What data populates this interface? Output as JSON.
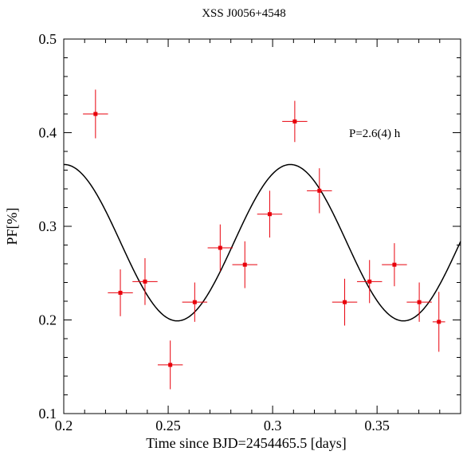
{
  "chart_data": {
    "type": "scatter",
    "title": "XSS J0056+4548",
    "xlabel": "Time since BJD=2454465.5 [days]",
    "ylabel": "PF[%]",
    "xlim": [
      0.2,
      0.39
    ],
    "ylim": [
      0.1,
      0.5
    ],
    "x_ticks": [
      0.2,
      0.25,
      0.3,
      0.35
    ],
    "x_tick_labels": [
      "0.2",
      "0.25",
      "0.3",
      "0.35"
    ],
    "y_ticks": [
      0.1,
      0.2,
      0.3,
      0.4,
      0.5
    ],
    "y_tick_labels": [
      "0.1",
      "0.2",
      "0.3",
      "0.4",
      "0.5"
    ],
    "annotation": "P=2.6(4) h",
    "grid": false,
    "colors": {
      "points": "#e8000b",
      "model": "#000000"
    },
    "series": [
      {
        "kind": "points_with_errorbars",
        "points": [
          {
            "x": 0.2152,
            "y": 0.42,
            "xerr": 0.006,
            "yerr": 0.026
          },
          {
            "x": 0.2271,
            "y": 0.229,
            "xerr": 0.006,
            "yerr": 0.025
          },
          {
            "x": 0.2389,
            "y": 0.241,
            "xerr": 0.006,
            "yerr": 0.025
          },
          {
            "x": 0.251,
            "y": 0.152,
            "xerr": 0.006,
            "yerr": 0.026
          },
          {
            "x": 0.2627,
            "y": 0.219,
            "xerr": 0.006,
            "yerr": 0.021
          },
          {
            "x": 0.2749,
            "y": 0.277,
            "xerr": 0.006,
            "yerr": 0.025
          },
          {
            "x": 0.2867,
            "y": 0.259,
            "xerr": 0.006,
            "yerr": 0.025
          },
          {
            "x": 0.2986,
            "y": 0.313,
            "xerr": 0.006,
            "yerr": 0.025
          },
          {
            "x": 0.3106,
            "y": 0.412,
            "xerr": 0.006,
            "yerr": 0.022
          },
          {
            "x": 0.3224,
            "y": 0.338,
            "xerr": 0.006,
            "yerr": 0.024
          },
          {
            "x": 0.3345,
            "y": 0.219,
            "xerr": 0.006,
            "yerr": 0.025
          },
          {
            "x": 0.3464,
            "y": 0.241,
            "xerr": 0.006,
            "yerr": 0.023
          },
          {
            "x": 0.3583,
            "y": 0.259,
            "xerr": 0.006,
            "yerr": 0.023
          },
          {
            "x": 0.3702,
            "y": 0.219,
            "xerr": 0.006,
            "yerr": 0.021
          },
          {
            "x": 0.3796,
            "y": 0.198,
            "xerr": 0.003,
            "yerr": 0.032
          }
        ]
      },
      {
        "kind": "sinusoid_model",
        "mean": 0.2825,
        "amplitude": 0.0835,
        "period": 0.1083,
        "peak_x": 0.3085
      }
    ]
  }
}
